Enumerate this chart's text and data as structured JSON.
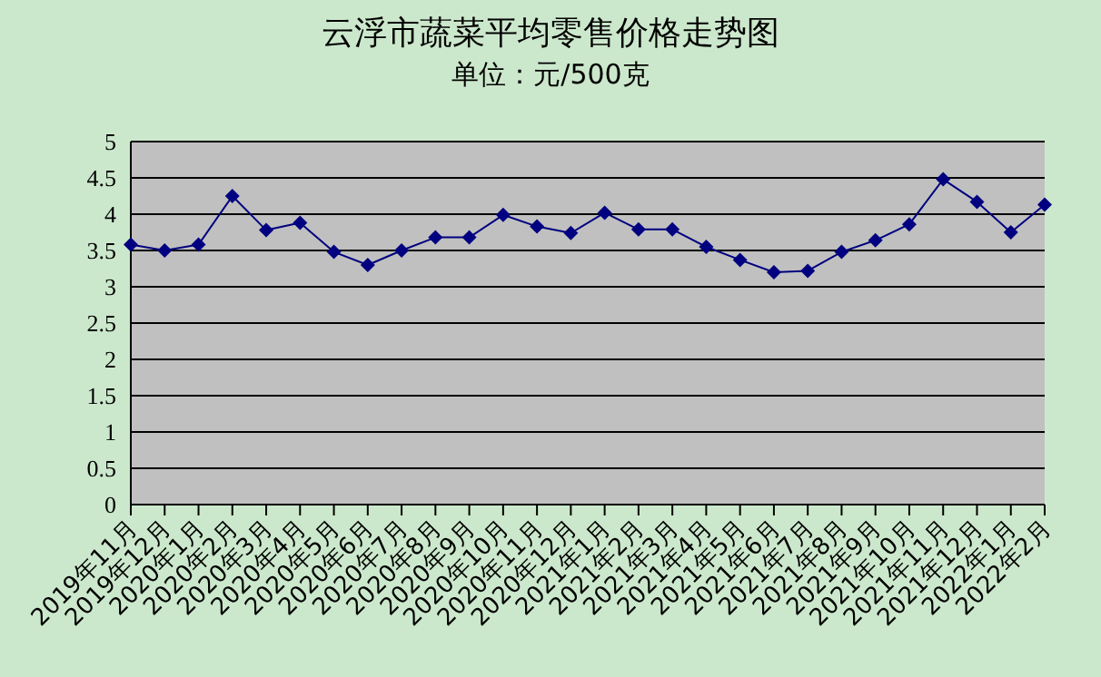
{
  "chart_data": {
    "type": "line",
    "title": "云浮市蔬菜平均零售价格走势图",
    "subtitle": "单位：元/500克",
    "categories": [
      "2019年11月",
      "2019年12月",
      "2020年1月",
      "2020年2月",
      "2020年3月",
      "2020年4月",
      "2020年5月",
      "2020年6月",
      "2020年7月",
      "2020年8月",
      "2020年9月",
      "2020年10月",
      "2020年11月",
      "2020年12月",
      "2021年1月",
      "2021年2月",
      "2021年3月",
      "2021年4月",
      "2021年5月",
      "2021年6月",
      "2021年7月",
      "2021年8月",
      "2021年9月",
      "2021年10月",
      "2021年11月",
      "2021年12月",
      "2022年1月",
      "2022年2月"
    ],
    "series": [
      {
        "color": "#000080",
        "values": [
          3.58,
          3.5,
          3.58,
          4.25,
          3.78,
          3.88,
          3.48,
          3.3,
          3.5,
          3.68,
          3.68,
          3.99,
          3.83,
          3.74,
          4.02,
          3.79,
          3.79,
          3.55,
          3.37,
          3.2,
          3.22,
          3.48,
          3.64,
          3.86,
          4.48,
          4.17,
          3.75,
          4.13
        ]
      }
    ],
    "ylim": [
      0,
      5
    ],
    "yticks": [
      0,
      0.5,
      1,
      1.5,
      2,
      2.5,
      3,
      3.5,
      4,
      4.5,
      5
    ],
    "grid": "y",
    "legend": false,
    "marker": "diamond",
    "line_style": "solid"
  }
}
